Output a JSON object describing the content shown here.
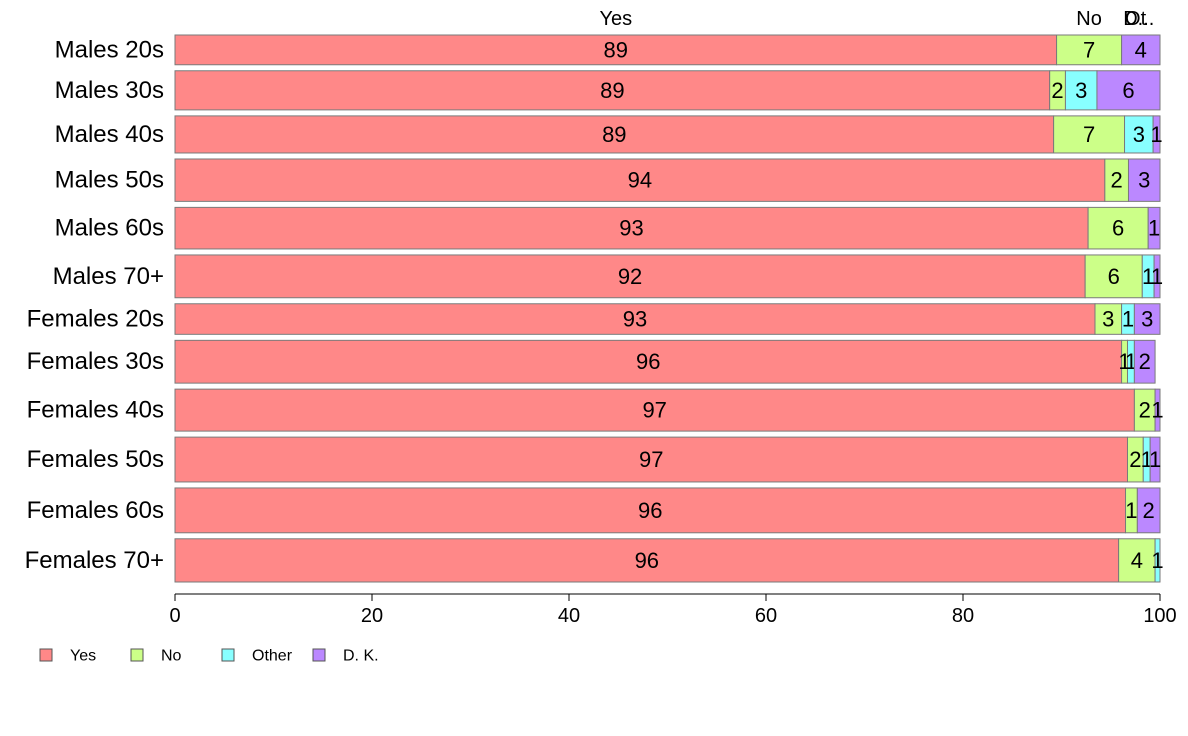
{
  "chart_data": {
    "type": "bar",
    "orientation": "horizontal",
    "stacked": true,
    "categories": [
      "Males 20s",
      "Males 30s",
      "Males 40s",
      "Males 50s",
      "Males 60s",
      "Males 70+",
      "Females 20s",
      "Females 30s",
      "Females 40s",
      "Females 50s",
      "Females 60s",
      "Females 70+"
    ],
    "category_weights": [
      0.73,
      0.96,
      0.91,
      1.04,
      1.02,
      1.05,
      0.75,
      1.05,
      1.03,
      1.1,
      1.1,
      1.06
    ],
    "series": [
      {
        "name": "Yes",
        "color": "#ff8888",
        "values": [
          89.5,
          88.8,
          89.2,
          94.4,
          92.7,
          92.4,
          93.4,
          96.1,
          97.4,
          96.7,
          96.5,
          95.8
        ]
      },
      {
        "name": "No",
        "color": "#ccff88",
        "values": [
          6.6,
          1.6,
          7.2,
          2.4,
          6.1,
          5.8,
          2.7,
          0.6,
          2.1,
          1.6,
          1.2,
          3.7
        ]
      },
      {
        "name": "Other",
        "color": "#88ffff",
        "values": [
          0.0,
          3.2,
          2.9,
          0.0,
          0.0,
          1.2,
          1.3,
          0.7,
          0.0,
          0.7,
          0.0,
          0.5
        ]
      },
      {
        "name": "D. K.",
        "color": "#bb88ff",
        "values": [
          3.9,
          6.4,
          0.7,
          3.2,
          1.2,
          0.6,
          2.6,
          2.1,
          0.5,
          1.0,
          2.3,
          0.0
        ]
      }
    ],
    "data_labels": [
      [
        "89",
        "7",
        "",
        "4"
      ],
      [
        "89",
        "2",
        "3",
        "6"
      ],
      [
        "89",
        "7",
        "3",
        "1"
      ],
      [
        "94",
        "2",
        "",
        "3"
      ],
      [
        "93",
        "6",
        "",
        "1"
      ],
      [
        "92",
        "6",
        "1",
        "1"
      ],
      [
        "93",
        "3",
        "1",
        "3"
      ],
      [
        "96",
        "1",
        "1",
        "2"
      ],
      [
        "97",
        "2",
        "",
        "1"
      ],
      [
        "97",
        "2",
        "1",
        "1"
      ],
      [
        "96",
        "1",
        "",
        "2"
      ],
      [
        "96",
        "4",
        "1",
        ""
      ]
    ],
    "top_labels": [
      "Yes",
      "No",
      "Ot",
      "D..."
    ],
    "xlim": [
      0,
      100
    ],
    "xticks": [
      "0",
      "20",
      "40",
      "60",
      "80",
      "100"
    ],
    "grid": false,
    "legend": {
      "placement": "bottom-left",
      "entries": [
        "Yes",
        "No",
        "Other",
        "D. K."
      ]
    }
  }
}
